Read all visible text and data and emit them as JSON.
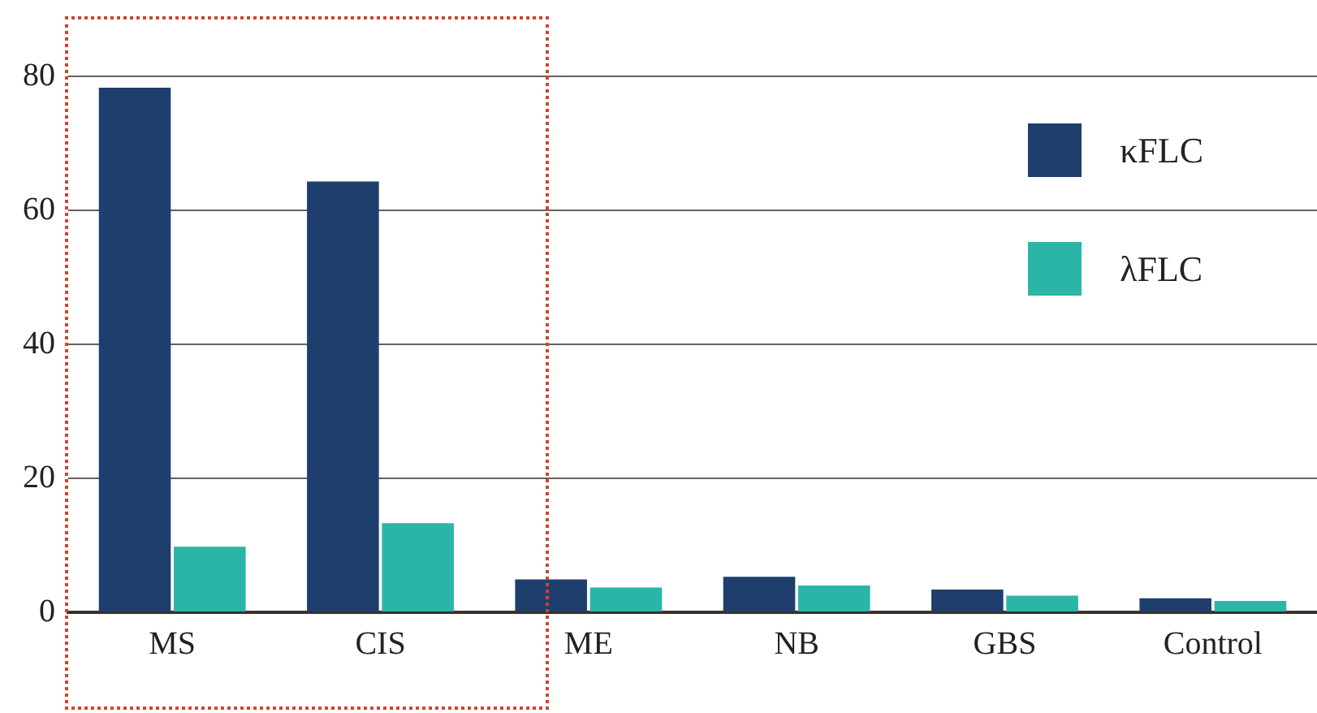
{
  "chart_data": {
    "type": "bar",
    "categories": [
      "MS",
      "CIS",
      "ME",
      "NB",
      "GBS",
      "Control"
    ],
    "series": [
      {
        "name": "κFLC",
        "color": "#1e3f6e",
        "values": [
          78.3,
          64.3,
          4.9,
          5.3,
          3.4,
          2.1
        ]
      },
      {
        "name": "λFLC",
        "color": "#2bb5a6",
        "values": [
          9.8,
          13.3,
          3.7,
          4.0,
          2.5,
          1.7
        ]
      }
    ],
    "ylim": [
      0,
      80
    ],
    "yticks": [
      0,
      20,
      40,
      60,
      80
    ],
    "grid": "y",
    "legend": "top right"
  }
}
